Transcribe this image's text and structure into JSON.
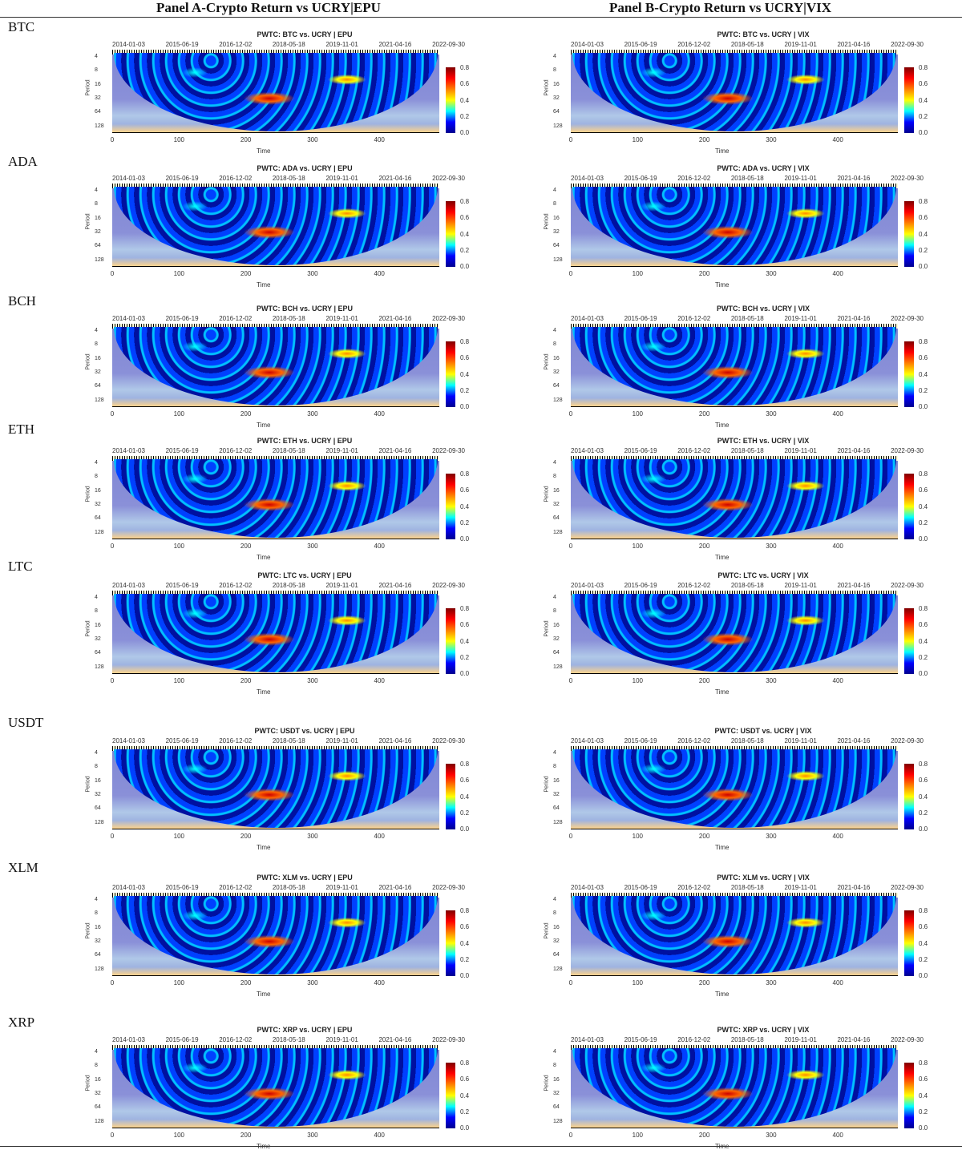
{
  "header": {
    "panel_a": "Panel A-Crypto Return vs UCRY|EPU",
    "panel_b": "Panel B-Crypto Return vs UCRY|VIX"
  },
  "common": {
    "dates": [
      "2014-01-03",
      "2015-06-19",
      "2016-12-02",
      "2018-05-18",
      "2019-11-01",
      "2021-04-16",
      "2022-09-30"
    ],
    "period_ticks": [
      "4",
      "8",
      "16",
      "32",
      "64",
      "128"
    ],
    "time_ticks": [
      "0",
      "100",
      "200",
      "300",
      "400"
    ],
    "colorbar_ticks": [
      "0.0",
      "0.2",
      "0.4",
      "0.6",
      "0.8"
    ],
    "ylabel": "Period",
    "xlabel": "Time"
  },
  "rows": [
    {
      "label": "BTC",
      "a_title": "PWTC: BTC vs. UCRY | EPU",
      "b_title": "PWTC: BTC vs. UCRY | VIX"
    },
    {
      "label": "ADA",
      "a_title": "PWTC: ADA vs. UCRY | EPU",
      "b_title": "PWTC: ADA vs. UCRY | VIX"
    },
    {
      "label": "BCH",
      "a_title": "PWTC: BCH vs. UCRY | EPU",
      "b_title": "PWTC: BCH vs. UCRY | VIX"
    },
    {
      "label": "ETH",
      "a_title": "PWTC: ETH vs. UCRY | EPU",
      "b_title": "PWTC: ETH vs. UCRY | VIX"
    },
    {
      "label": "LTC",
      "a_title": "PWTC: LTC vs. UCRY | EPU",
      "b_title": "PWTC: LTC vs. UCRY | VIX"
    },
    {
      "label": "USDT",
      "a_title": "PWTC: USDT vs. UCRY | EPU",
      "b_title": "PWTC: USDT vs. UCRY | VIX"
    },
    {
      "label": "XLM",
      "a_title": "PWTC: XLM vs. UCRY | EPU",
      "b_title": "PWTC: XLM vs. UCRY | VIX"
    },
    {
      "label": "XRP",
      "a_title": "PWTC: XRP vs. UCRY | EPU",
      "b_title": "PWTC: XRP vs. UCRY | VIX"
    }
  ],
  "chart_data": {
    "type": "heatmap",
    "title": "Partial wavelet coherence (PWTC) of crypto returns vs UCRY conditioned on EPU / VIX",
    "xlabel": "Time",
    "ylabel": "Period",
    "x_range": [
      0,
      490
    ],
    "y_ticks": [
      4,
      8,
      16,
      32,
      64,
      128
    ],
    "colorbar_range": [
      0.0,
      0.9
    ],
    "panels": [
      "Panel A-Crypto Return vs UCRY|EPU",
      "Panel B-Crypto Return vs UCRY|VIX"
    ],
    "assets": [
      "BTC",
      "ADA",
      "BCH",
      "ETH",
      "LTC",
      "USDT",
      "XLM",
      "XRP"
    ]
  }
}
